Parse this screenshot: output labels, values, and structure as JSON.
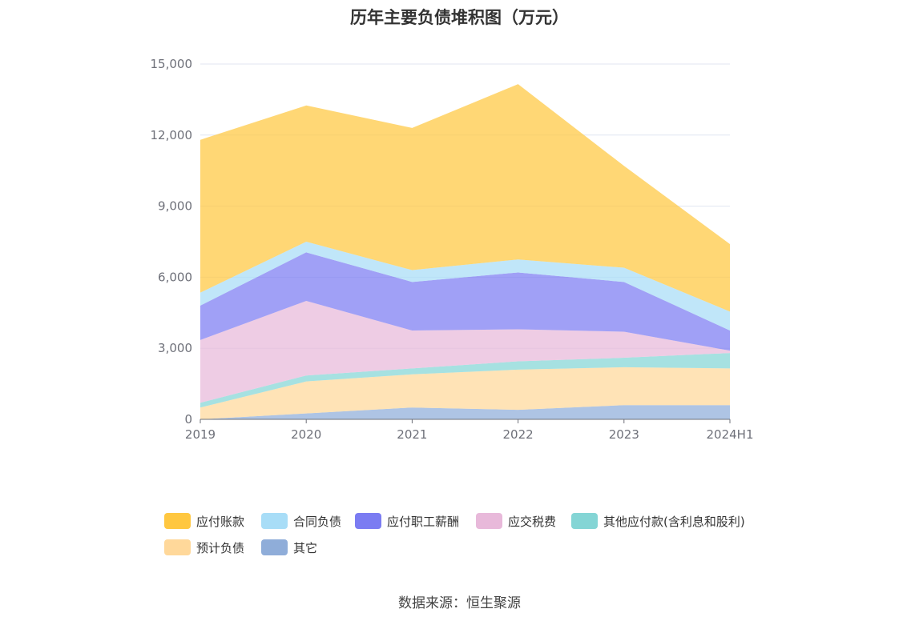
{
  "chart_data": {
    "type": "area",
    "stacked": true,
    "title": "历年主要负债堆积图（万元）",
    "categories": [
      "2019",
      "2020",
      "2021",
      "2022",
      "2023",
      "2024H1"
    ],
    "ylim": [
      0,
      15000
    ],
    "yticks": [
      "0",
      "3,000",
      "6,000",
      "9,000",
      "12,000",
      "15,000"
    ],
    "grid": true,
    "legend_position": "bottom",
    "series": [
      {
        "name": "其它",
        "color": "#8fadd9",
        "values": [
          0,
          250,
          500,
          400,
          600,
          600
        ]
      },
      {
        "name": "预计负债",
        "color": "#ffd89a",
        "values": [
          500,
          1350,
          1400,
          1700,
          1600,
          1550
        ]
      },
      {
        "name": "其他应付款(含利息和股利)",
        "color": "#84d5d5",
        "values": [
          200,
          250,
          250,
          350,
          400,
          650
        ]
      },
      {
        "name": "应交税费",
        "color": "#e8b9da",
        "values": [
          2650,
          3150,
          1600,
          1350,
          1100,
          100
        ]
      },
      {
        "name": "应付职工薪酬",
        "color": "#7b7cf2",
        "values": [
          1450,
          2050,
          2050,
          2400,
          2100,
          850
        ]
      },
      {
        "name": "合同负债",
        "color": "#a8ddf7",
        "values": [
          550,
          450,
          500,
          550,
          600,
          800
        ]
      },
      {
        "name": "应付账款",
        "color": "#ffc740",
        "values": [
          6450,
          5750,
          6000,
          7400,
          4300,
          2850
        ]
      }
    ]
  },
  "legend_order": [
    "应付账款",
    "合同负债",
    "应付职工薪酬",
    "应交税费",
    "其他应付款(含利息和股利)",
    "预计负债",
    "其它"
  ],
  "source": "数据来源：恒生聚源"
}
